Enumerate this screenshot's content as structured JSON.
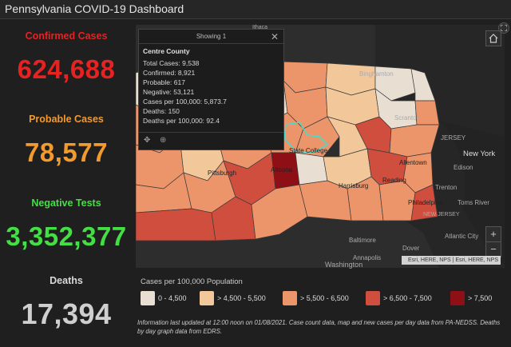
{
  "title": "Pennsylvania COVID-19 Dashboard",
  "stats": {
    "confirmed": {
      "label": "Confirmed Cases",
      "value": "624,688",
      "color": "#e82121"
    },
    "probable": {
      "label": "Probable Cases",
      "value": "78,577",
      "color": "#f29a2e"
    },
    "negative": {
      "label": "Negative Tests",
      "value": "3,352,377",
      "color": "#43e043"
    },
    "deaths": {
      "label": "Deaths",
      "value": "17,394",
      "color": "#d9d9d9"
    }
  },
  "popup": {
    "header": "Showing 1",
    "close_icon": "close-icon",
    "title": "Centre County",
    "lines": [
      "Total Cases: 9,538",
      "Confirmed: 8,921",
      "Probable: 617",
      "Negative: 53,121",
      "Cases per 100,000: 5,873.7",
      "Deaths: 150",
      "Deaths per 100,000: 92.4"
    ],
    "tools": [
      "move-icon",
      "zoom-to-icon"
    ]
  },
  "map_labels": {
    "binghamton": "Binghamton",
    "scranton": "Scranton",
    "new_jersey": "NEW JERSEY",
    "new_york": "New York",
    "edison": "Edison",
    "allentown": "Allentown",
    "state_college": "State College",
    "pittsburgh": "Pittsburgh",
    "altoona": "Altoona",
    "harrisburg": "Harrisburg",
    "reading": "Reading",
    "trenton": "Trenton",
    "toms_river": "Toms River",
    "philadelphia": "Philadelphia",
    "new_jersey2": "NEW JERSEY",
    "atlantic_city": "Atlantic City",
    "baltimore": "Baltimore",
    "dover": "Dover",
    "annapolis": "Annapolis",
    "washington": "Washington",
    "ithaca": "Ithaca",
    "jersey": "JERSEY"
  },
  "map_controls": {
    "home_icon": "home-icon",
    "expand_icon": "expand-icon",
    "zoom_in": "+",
    "zoom_out": "−"
  },
  "attribution": "Esri, HERE, NPS | Esri, HERE, NPS",
  "legend": {
    "title": "Cases per 100,000 Population",
    "items": [
      {
        "label": "0 - 4,500",
        "color": "#e8dfd2"
      },
      {
        "label": "> 4,500 - 5,500",
        "color": "#f2c89a"
      },
      {
        "label": "> 5,500 - 6,500",
        "color": "#ec946a"
      },
      {
        "label": "> 6,500 - 7,500",
        "color": "#cf4e3e"
      },
      {
        "label": "> 7,500",
        "color": "#8e1016"
      }
    ]
  },
  "footnote": "Information last updated at 12:00 noon on 01/08/2021. Case count data, map and new cases per day data from PA-NEDSS.  Deaths by day graph data from EDRS."
}
